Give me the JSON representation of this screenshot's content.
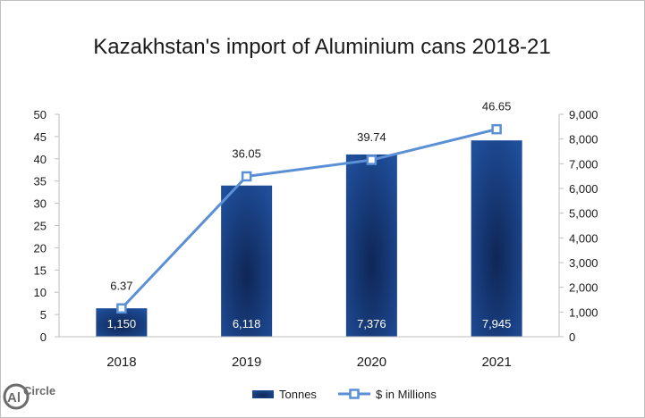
{
  "chart_data": {
    "type": "bar",
    "title": "Kazakhstan's import of Aluminium cans 2018-21",
    "categories": [
      "2018",
      "2019",
      "2020",
      "2021"
    ],
    "series": [
      {
        "name": "Tonnes",
        "type": "bar",
        "axis": "right",
        "values": [
          1150,
          6118,
          7376,
          7945
        ],
        "labels": [
          "1,150",
          "6,118",
          "7,376",
          "7,945"
        ]
      },
      {
        "name": "$ in Millions",
        "type": "line",
        "axis": "left",
        "values": [
          6.37,
          36.05,
          39.74,
          46.65
        ],
        "labels": [
          "6.37",
          "36.05",
          "39.74",
          "46.65"
        ]
      }
    ],
    "y_left": {
      "min": 0,
      "max": 50,
      "ticks": [
        "0",
        "5",
        "10",
        "15",
        "20",
        "25",
        "30",
        "35",
        "40",
        "45",
        "50"
      ]
    },
    "y_right": {
      "min": 0,
      "max": 9000,
      "ticks": [
        "0",
        "1,000",
        "2,000",
        "3,000",
        "4,000",
        "5,000",
        "6,000",
        "7,000",
        "8,000",
        "9,000"
      ]
    },
    "grid": false,
    "legend": "bottom"
  },
  "logo": {
    "text": "AlCircle"
  },
  "colors": {
    "bar_dark": "#13306b",
    "bar_mid": "#1f4e9a",
    "line": "#5b8fd6",
    "marker_fill": "#ffffff",
    "axis": "#bfbfbf"
  }
}
